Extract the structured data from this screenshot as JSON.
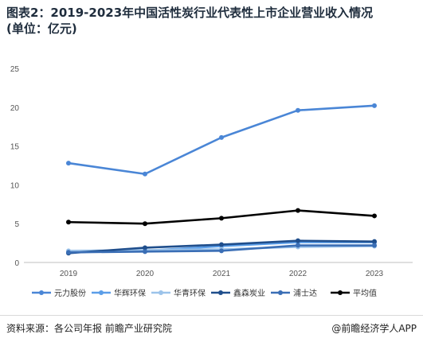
{
  "header": {
    "title_line1": "图表2：2019-2023年中国活性炭行业代表性上市企业营业收入情况",
    "title_line2": "(单位：亿元)"
  },
  "footer": {
    "source": "资料来源：各公司年报 前瞻产业研究院",
    "brand": "@前瞻经济学人APP"
  },
  "chart_data": {
    "type": "line",
    "x": [
      "2019",
      "2020",
      "2021",
      "2022",
      "2023"
    ],
    "ylim": [
      0,
      25
    ],
    "yticks": [
      0,
      5,
      10,
      15,
      20,
      25
    ],
    "grid": false,
    "legend_position": "bottom",
    "series": [
      {
        "name": "元力股份",
        "color": "#4a86d6",
        "values": [
          12.8,
          11.4,
          16.1,
          19.6,
          20.2
        ]
      },
      {
        "name": "华辉环保",
        "color": "#5b9ee8",
        "values": [
          1.3,
          1.5,
          2.1,
          2.6,
          2.6
        ]
      },
      {
        "name": "华青环保",
        "color": "#9cc3ea",
        "values": [
          1.5,
          1.6,
          1.7,
          2.0,
          2.1
        ]
      },
      {
        "name": "鑫森炭业",
        "color": "#1f4e8c",
        "values": [
          1.2,
          1.9,
          2.3,
          2.8,
          2.7
        ]
      },
      {
        "name": "浦士达",
        "color": "#3a6eb5",
        "values": [
          1.3,
          1.4,
          1.5,
          2.2,
          2.2
        ]
      },
      {
        "name": "平均值",
        "color": "#000000",
        "values": [
          5.2,
          5.0,
          5.7,
          6.7,
          6.0
        ]
      }
    ]
  }
}
